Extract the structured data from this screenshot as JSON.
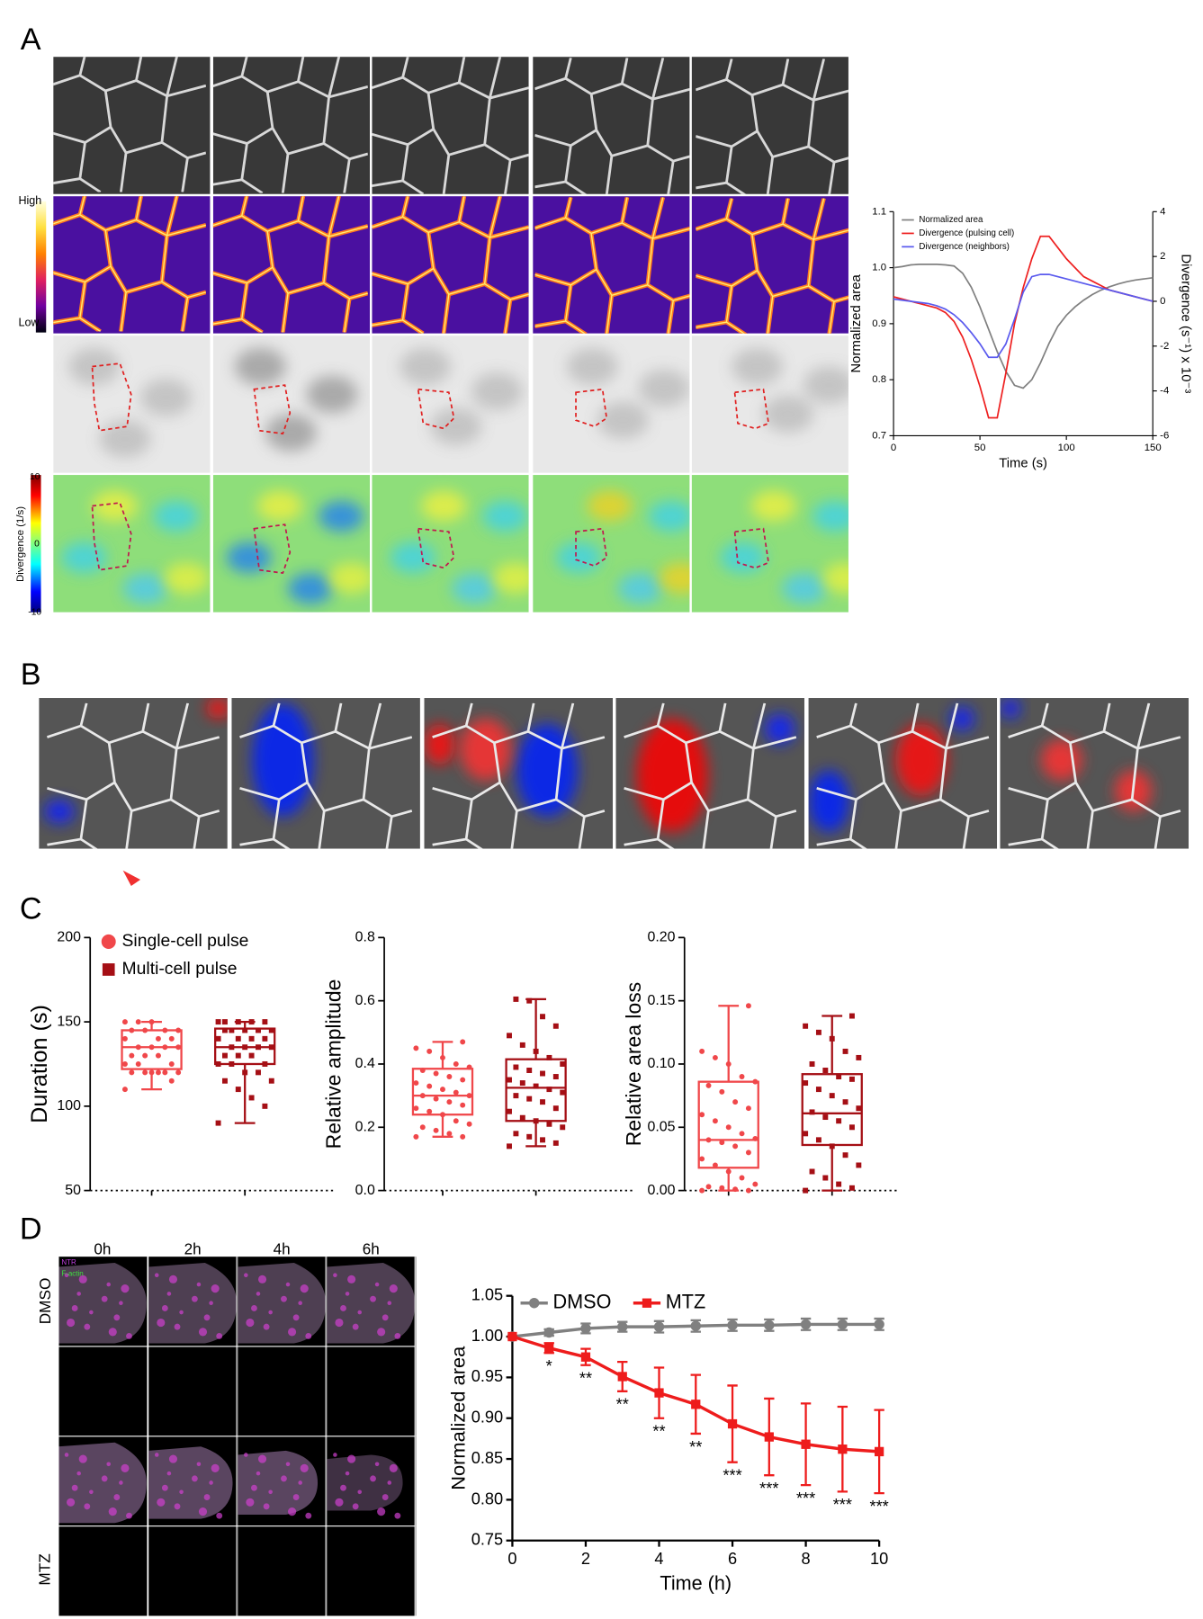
{
  "figure": {
    "panel_labels": [
      "A",
      "B",
      "C",
      "D"
    ],
    "fire_colorbar": {
      "high": "High",
      "low": "Low"
    },
    "divergence_colorbar": {
      "label": "Divergence (1/s)",
      "ticks": [
        10,
        0,
        -10
      ]
    },
    "time_series_images": {
      "columns": [
        "0h",
        "2h",
        "4h",
        "6h"
      ],
      "rows": [
        "DMSO",
        "MTZ"
      ],
      "channels": [
        "NTR",
        "F-actin"
      ]
    }
  },
  "chart_data": [
    {
      "type": "line",
      "x": [
        0,
        5,
        10,
        15,
        20,
        25,
        30,
        35,
        40,
        45,
        50,
        55,
        60,
        65,
        70,
        75,
        80,
        85,
        90,
        95,
        100,
        105,
        110,
        115,
        120,
        125,
        130,
        135,
        140,
        145,
        150
      ],
      "xlim": [
        0,
        150
      ],
      "xticks": [
        0,
        50,
        100,
        150
      ],
      "ylim": [
        0.7,
        1.1
      ],
      "yticks": [
        0.7,
        0.8,
        0.9,
        {
          "value": 1,
          "label": "1.0"
        },
        1.1
      ],
      "y2lim": [
        -6,
        4
      ],
      "y2ticks": [
        -6,
        -4,
        -2,
        0,
        2,
        4
      ],
      "xlabel": "Time (s)",
      "ylabel": "Normalized area",
      "y2label": "Divergence (s⁻¹) x 10⁻³",
      "legend": "upper left",
      "series": [
        {
          "name": "Normalized area",
          "color": "#808080",
          "values": [
            1.0,
            1.002,
            1.005,
            1.006,
            1.006,
            1.006,
            1.005,
            1.003,
            0.99,
            0.965,
            0.93,
            0.89,
            0.85,
            0.815,
            0.79,
            0.785,
            0.8,
            0.83,
            0.865,
            0.895,
            0.915,
            0.93,
            0.942,
            0.952,
            0.96,
            0.966,
            0.971,
            0.975,
            0.978,
            0.98,
            0.982
          ]
        },
        {
          "name": "Divergence (pulsing cell)",
          "color": "#ee2020",
          "axis": "y2",
          "values": [
            0.2,
            0.1,
            0,
            -0.1,
            -0.2,
            -0.3,
            -0.5,
            -0.9,
            -1.6,
            -2.6,
            -3.8,
            -5.2,
            -5.2,
            -3.2,
            -1.0,
            0.6,
            1.9,
            2.9,
            2.9,
            2.4,
            1.9,
            1.5,
            1.1,
            0.9,
            0.7,
            0.5,
            0.4,
            0.3,
            0.2,
            0.1,
            0.0
          ]
        },
        {
          "name": "Divergence (neighbors)",
          "color": "#5a5aee",
          "axis": "y2",
          "values": [
            0.1,
            0.05,
            0,
            -0.05,
            -0.1,
            -0.2,
            -0.35,
            -0.6,
            -0.95,
            -1.4,
            -1.9,
            -2.5,
            -2.5,
            -1.9,
            -0.8,
            0.4,
            1.1,
            1.2,
            1.2,
            1.1,
            1.0,
            0.9,
            0.8,
            0.7,
            0.6,
            0.5,
            0.4,
            0.3,
            0.2,
            0.1,
            0.0
          ]
        }
      ]
    },
    {
      "type": "box",
      "ylim": [
        50,
        200
      ],
      "yticks": [
        50,
        100,
        150,
        200
      ],
      "ylabel": "Duration (s)",
      "legend": "upper left",
      "series": [
        {
          "name": "Single-cell pulse",
          "color": "#f0474a",
          "marker": "circle",
          "min": 110,
          "q1": 122,
          "median": 135,
          "q3": 145,
          "max": 150,
          "points": [
            110,
            115,
            120,
            120,
            120,
            120,
            120,
            120,
            125,
            125,
            125,
            130,
            130,
            130,
            135,
            135,
            135,
            135,
            140,
            140,
            140,
            145,
            145,
            145,
            145,
            150,
            150,
            150
          ]
        },
        {
          "name": "Multi-cell pulse",
          "color": "#a50f15",
          "marker": "square",
          "min": 90,
          "q1": 125,
          "median": 135,
          "q3": 146,
          "max": 150,
          "points": [
            90,
            100,
            105,
            110,
            115,
            115,
            120,
            120,
            125,
            125,
            125,
            130,
            130,
            130,
            135,
            135,
            135,
            135,
            140,
            140,
            140,
            140,
            145,
            145,
            145,
            145,
            145,
            150,
            150,
            150,
            150,
            150
          ]
        }
      ]
    },
    {
      "type": "box",
      "ylim": [
        0,
        0.8
      ],
      "yticks": [
        {
          "value": 0,
          "label": "0.0"
        },
        0.2,
        0.4,
        0.6,
        0.8
      ],
      "ylabel": "Relative amplitude",
      "series": [
        {
          "color": "#f0474a",
          "marker": "circle",
          "min": 0.17,
          "q1": 0.24,
          "median": 0.3,
          "q3": 0.385,
          "max": 0.47,
          "points": [
            0.17,
            0.17,
            0.18,
            0.19,
            0.2,
            0.21,
            0.22,
            0.24,
            0.25,
            0.26,
            0.27,
            0.28,
            0.29,
            0.3,
            0.3,
            0.31,
            0.32,
            0.33,
            0.34,
            0.35,
            0.36,
            0.37,
            0.38,
            0.39,
            0.4,
            0.42,
            0.44,
            0.45,
            0.47
          ]
        },
        {
          "color": "#a50f15",
          "marker": "square",
          "min": 0.14,
          "q1": 0.22,
          "median": 0.325,
          "q3": 0.415,
          "max": 0.605,
          "points": [
            0.14,
            0.15,
            0.16,
            0.17,
            0.18,
            0.2,
            0.21,
            0.22,
            0.23,
            0.25,
            0.26,
            0.28,
            0.29,
            0.3,
            0.31,
            0.32,
            0.33,
            0.34,
            0.35,
            0.36,
            0.37,
            0.38,
            0.39,
            0.4,
            0.42,
            0.44,
            0.46,
            0.49,
            0.52,
            0.55,
            0.6,
            0.605
          ]
        }
      ]
    },
    {
      "type": "box",
      "ylim": [
        0,
        0.2
      ],
      "yticks": [
        {
          "value": 0,
          "label": "0.00"
        },
        0.05,
        {
          "value": 0.1,
          "label": "0.10"
        },
        0.15,
        {
          "value": 0.2,
          "label": "0.20"
        }
      ],
      "ylabel": "Relative area loss",
      "series": [
        {
          "color": "#f0474a",
          "marker": "circle",
          "min": 0,
          "q1": 0.018,
          "median": 0.04,
          "q3": 0.086,
          "max": 0.146,
          "points": [
            0,
            0,
            0.001,
            0.002,
            0.003,
            0.005,
            0.01,
            0.015,
            0.02,
            0.025,
            0.03,
            0.035,
            0.038,
            0.04,
            0.041,
            0.045,
            0.05,
            0.055,
            0.06,
            0.065,
            0.07,
            0.078,
            0.083,
            0.086,
            0.09,
            0.1,
            0.105,
            0.11,
            0.146
          ]
        },
        {
          "color": "#a50f15",
          "marker": "square",
          "min": 0,
          "q1": 0.036,
          "median": 0.061,
          "q3": 0.092,
          "max": 0.138,
          "points": [
            0,
            0.002,
            0.005,
            0.01,
            0.015,
            0.02,
            0.028,
            0.035,
            0.04,
            0.045,
            0.05,
            0.055,
            0.058,
            0.062,
            0.065,
            0.07,
            0.075,
            0.08,
            0.085,
            0.088,
            0.09,
            0.095,
            0.1,
            0.105,
            0.11,
            0.12,
            0.125,
            0.13,
            0.138
          ]
        }
      ]
    },
    {
      "type": "line",
      "x": [
        0,
        1,
        2,
        3,
        4,
        5,
        6,
        7,
        8,
        9,
        10
      ],
      "xlim": [
        0,
        10
      ],
      "xticks": [
        0,
        2,
        4,
        6,
        8,
        10
      ],
      "ylim": [
        0.75,
        1.05
      ],
      "yticks": [
        0.75,
        {
          "value": 0.8,
          "label": "0.80"
        },
        0.85,
        {
          "value": 0.9,
          "label": "0.90"
        },
        0.95,
        {
          "value": 1,
          "label": "1.00"
        },
        1.05
      ],
      "xlabel": "Time (h)",
      "ylabel": "Normalized area",
      "legend": "top",
      "series": [
        {
          "name": "DMSO",
          "color": "#808080",
          "marker": "circle",
          "values": [
            1.0,
            1.005,
            1.01,
            1.012,
            1.012,
            1.013,
            1.014,
            1.014,
            1.015,
            1.015,
            1.015
          ],
          "errors": [
            0,
            0.004,
            0.006,
            0.006,
            0.007,
            0.007,
            0.007,
            0.007,
            0.007,
            0.007,
            0.007
          ]
        },
        {
          "name": "MTZ",
          "color": "#ee1c1c",
          "marker": "square",
          "values": [
            1.0,
            0.986,
            0.975,
            0.951,
            0.931,
            0.917,
            0.893,
            0.877,
            0.868,
            0.862,
            0.859
          ],
          "errors": [
            0,
            0.006,
            0.01,
            0.018,
            0.031,
            0.036,
            0.047,
            0.047,
            0.05,
            0.052,
            0.051
          ],
          "annotations": [
            null,
            "*",
            "**",
            "**",
            "**",
            "**",
            "***",
            "***",
            "***",
            "***",
            "***"
          ]
        }
      ]
    }
  ]
}
